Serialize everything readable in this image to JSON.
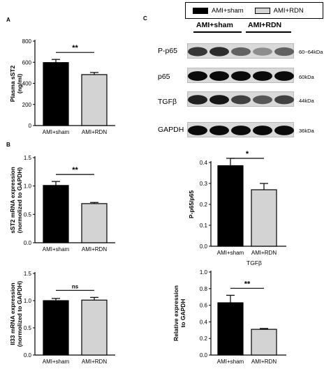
{
  "panels": {
    "a": "A",
    "b": "B",
    "c": "C"
  },
  "colors": {
    "sham": "#000000",
    "rdn": "#d3d3d3"
  },
  "legend": {
    "items": [
      {
        "label": "AMI+sham",
        "color": "#000000"
      },
      {
        "label": "AMI+RDN",
        "color": "#d3d3d3"
      }
    ]
  },
  "western_blot": {
    "group_headers": [
      "AMI+sham",
      "AMI+RDN"
    ],
    "rows": [
      {
        "label": "P-p65",
        "size": "60~64kDa",
        "bands": [
          0.75,
          0.8,
          0.55,
          0.35,
          0.55
        ]
      },
      {
        "label": "p65",
        "size": "60kDa",
        "bands": [
          0.95,
          0.95,
          0.95,
          0.95,
          0.95
        ]
      },
      {
        "label": "TGFβ",
        "size": "44kDa",
        "bands": [
          0.85,
          0.9,
          0.7,
          0.6,
          0.7
        ]
      },
      {
        "label": "GAPDH",
        "size": "36kDa",
        "bands": [
          0.95,
          0.95,
          0.95,
          0.95,
          0.95
        ]
      }
    ]
  },
  "chart_data": [
    {
      "type": "bar",
      "categories": [
        "AMI+sham",
        "AMI+RDN"
      ],
      "values": [
        597,
        483
      ],
      "errors": [
        30,
        20
      ],
      "ylabel": "Plasma sST2 (ng/ml)",
      "ylim": [
        0,
        800
      ],
      "yticks": [
        0,
        200,
        400,
        600,
        800
      ],
      "significance": "**"
    },
    {
      "type": "bar",
      "categories": [
        "AMI+sham",
        "AMI+RDN"
      ],
      "values": [
        1.01,
        0.69
      ],
      "errors": [
        0.07,
        0.02
      ],
      "ylabel": "sST2 mRNA expression (normolized to GAPDH)",
      "ylim": [
        0,
        1.5
      ],
      "yticks": [
        0.0,
        0.5,
        1.0,
        1.5
      ],
      "significance": "**"
    },
    {
      "type": "bar",
      "categories": [
        "AMI+sham",
        "AMI+RDN"
      ],
      "values": [
        1.0,
        1.01
      ],
      "errors": [
        0.04,
        0.05
      ],
      "ylabel": "Il33 mRNA expression (normolized to GAPDH)",
      "ylim": [
        0,
        1.5
      ],
      "yticks": [
        0.0,
        0.5,
        1.0,
        1.5
      ],
      "significance": "ns"
    },
    {
      "type": "bar",
      "categories": [
        "AMI+sham",
        "AMI+RDN"
      ],
      "values": [
        0.385,
        0.27
      ],
      "errors": [
        0.035,
        0.03
      ],
      "ylabel": "P-p65/p65",
      "ylim": [
        0,
        0.4
      ],
      "yticks": [
        0.0,
        0.1,
        0.2,
        0.3,
        0.4
      ],
      "significance": "*"
    },
    {
      "type": "bar",
      "title": "TGFβ",
      "categories": [
        "AMI+sham",
        "AMI+RDN"
      ],
      "values": [
        0.63,
        0.31
      ],
      "errors": [
        0.09,
        0.01
      ],
      "ylabel": "Relative expression to GAPDH",
      "ylim": [
        0,
        1.0
      ],
      "yticks": [
        0.0,
        0.2,
        0.4,
        0.6,
        0.8,
        1.0
      ],
      "significance": "**"
    }
  ]
}
